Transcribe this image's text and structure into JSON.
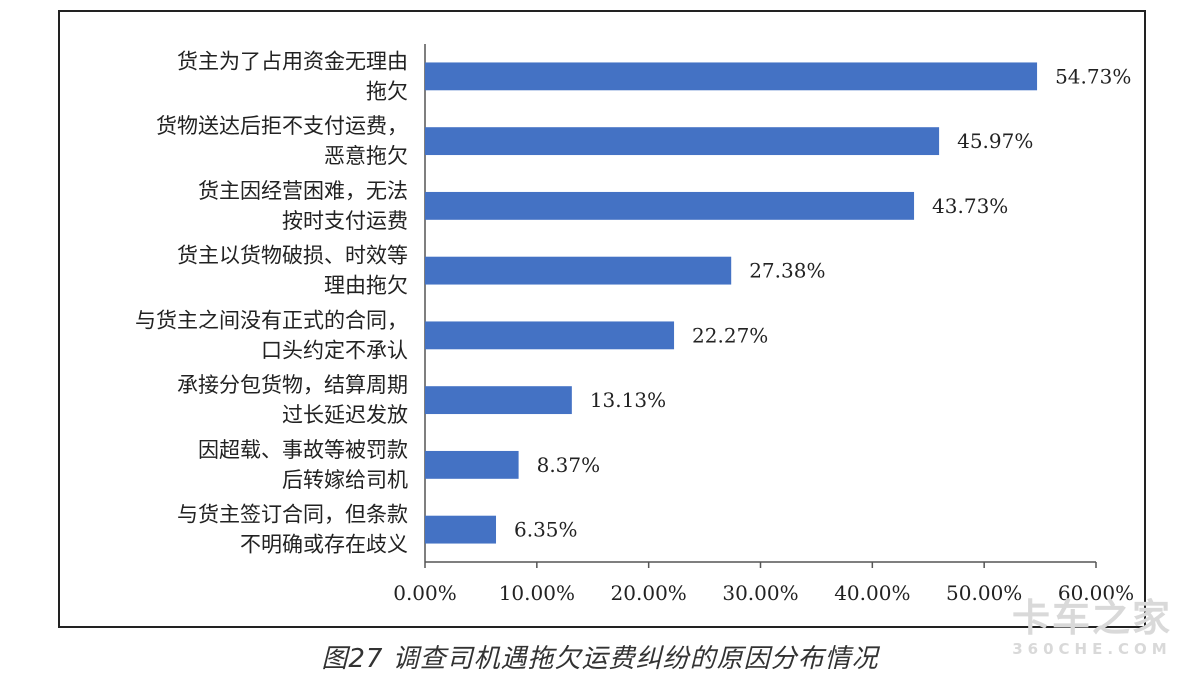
{
  "chart_data": {
    "type": "bar",
    "orientation": "horizontal",
    "categories": [
      [
        "货主为了占用资金无理由",
        "拖欠"
      ],
      [
        "货物送达后拒不支付运费，",
        "恶意拖欠"
      ],
      [
        "货主因经营困难，无法",
        "按时支付运费"
      ],
      [
        "货主以货物破损、时效等",
        "理由拖欠"
      ],
      [
        "与货主之间没有正式的合同，",
        "口头约定不承认"
      ],
      [
        "承接分包货物，结算周期",
        "过长延迟发放"
      ],
      [
        "因超载、事故等被罚款",
        "后转嫁给司机"
      ],
      [
        "与货主签订合同，但条款",
        "不明确或存在歧义"
      ]
    ],
    "values": [
      54.73,
      45.97,
      43.73,
      27.38,
      22.27,
      13.13,
      8.37,
      6.35
    ],
    "value_labels": [
      "54.73%",
      "45.97%",
      "43.73%",
      "27.38%",
      "22.27%",
      "13.13%",
      "8.37%",
      "6.35%"
    ],
    "xlim": [
      0,
      60
    ],
    "x_ticks": [
      0,
      10,
      20,
      30,
      40,
      50,
      60
    ],
    "x_tick_labels": [
      "0.00%",
      "10.00%",
      "20.00%",
      "30.00%",
      "40.00%",
      "50.00%",
      "60.00%"
    ],
    "grid": false,
    "bar_color": "#4472C4"
  },
  "caption": "图27 调查司机遇拖欠运费纠纷的原因分布情况",
  "watermark": {
    "main": "卡车之家",
    "sub": "360CHE.COM"
  }
}
